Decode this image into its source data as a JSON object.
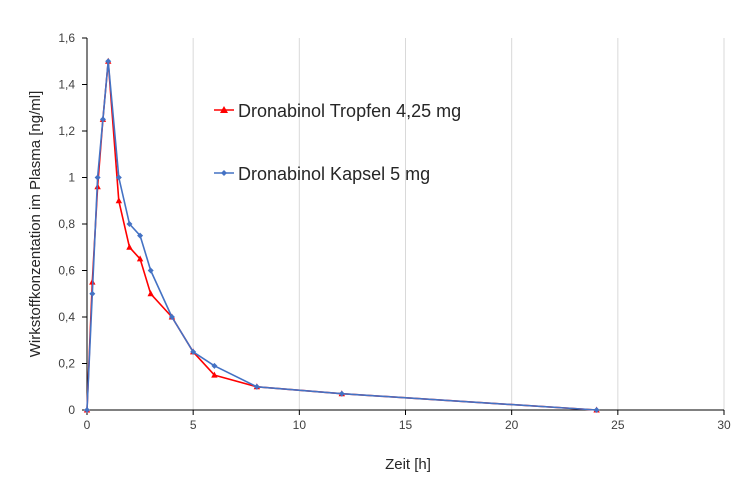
{
  "chart_data": {
    "type": "line",
    "xlabel": "Zeit [h]",
    "ylabel": "Wirkstoffkonzentation im Plasma  [ng/ml]",
    "xlim": [
      0,
      30
    ],
    "ylim": [
      0,
      1.6
    ],
    "x_ticks": [
      0,
      5,
      10,
      15,
      20,
      25,
      30
    ],
    "y_ticks": [
      0,
      0.2,
      0.4,
      0.6,
      0.8,
      1,
      1.2,
      1.4,
      1.6
    ],
    "x_tick_labels": [
      "0",
      "5",
      "10",
      "15",
      "20",
      "25",
      "30"
    ],
    "y_tick_labels": [
      "0",
      "0,2",
      "0,4",
      "0,6",
      "0,8",
      "1",
      "1,2",
      "1,4",
      "1,6"
    ],
    "grid": "vertical",
    "legend_position": "top-right",
    "series": [
      {
        "name": "Dronabinol Tropfen 4,25 mg",
        "color": "#ff0000",
        "marker": "triangle",
        "x": [
          0,
          0.25,
          0.5,
          0.75,
          1,
          1.5,
          2,
          2.5,
          3,
          4,
          5,
          6,
          8,
          12,
          24
        ],
        "y": [
          0,
          0.55,
          0.96,
          1.25,
          1.5,
          0.9,
          0.7,
          0.65,
          0.5,
          0.4,
          0.25,
          0.15,
          0.1,
          0.07,
          0
        ]
      },
      {
        "name": "Dronabinol Kapsel 5 mg",
        "color": "#4472c4",
        "marker": "diamond",
        "x": [
          0,
          0.25,
          0.5,
          0.75,
          1,
          1.5,
          2,
          2.5,
          3,
          4,
          5,
          6,
          8,
          12,
          24
        ],
        "y": [
          0,
          0.5,
          1,
          1.25,
          1.5,
          1,
          0.8,
          0.75,
          0.6,
          0.4,
          0.25,
          0.19,
          0.1,
          0.07,
          0
        ]
      }
    ]
  }
}
